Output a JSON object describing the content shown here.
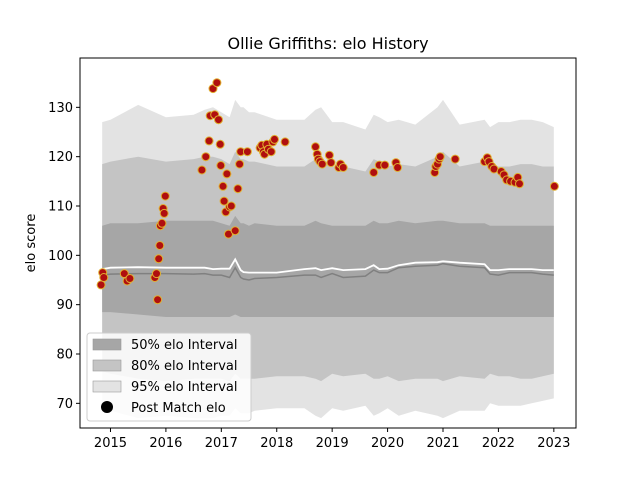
{
  "chart_data": {
    "type": "scatter",
    "title": "Ollie Griffiths: elo History",
    "xlabel": "",
    "ylabel": "elo score",
    "xlim": [
      2014.45,
      2023.4
    ],
    "ylim": [
      65,
      140
    ],
    "x_ticks": [
      2015,
      2016,
      2017,
      2018,
      2019,
      2020,
      2021,
      2022,
      2023
    ],
    "x_tick_labels": [
      "2015",
      "2016",
      "2017",
      "2018",
      "2019",
      "2020",
      "2021",
      "2022",
      "2023"
    ],
    "y_ticks": [
      70,
      80,
      90,
      100,
      110,
      120,
      130
    ],
    "y_tick_labels": [
      "70",
      "80",
      "90",
      "100",
      "110",
      "120",
      "130"
    ],
    "grid": false,
    "legend_position": "lower-left",
    "legend": [
      {
        "label": "50% elo Interval",
        "type": "band50"
      },
      {
        "label": "80% elo Interval",
        "type": "band80"
      },
      {
        "label": "95% elo Interval",
        "type": "band95"
      },
      {
        "label": "Post Match elo",
        "type": "marker"
      }
    ],
    "colors": {
      "band50": "#a6a6a6",
      "band80": "#c4c4c4",
      "band95": "#e3e3e3",
      "median_line": "#ffffff",
      "mean_line": "#808080",
      "marker_face": "#b00f0f",
      "marker_edge": "#e0b030"
    },
    "bands": {
      "x": [
        2014.85,
        2015.0,
        2015.5,
        2016.0,
        2016.5,
        2016.7,
        2016.85,
        2017.0,
        2017.15,
        2017.25,
        2017.35,
        2017.4,
        2017.5,
        2017.6,
        2018.0,
        2018.5,
        2018.7,
        2018.8,
        2019.0,
        2019.2,
        2019.6,
        2019.75,
        2019.85,
        2020.0,
        2020.2,
        2020.5,
        2020.9,
        2021.0,
        2021.3,
        2021.75,
        2021.85,
        2022.0,
        2022.2,
        2022.4,
        2022.6,
        2022.8,
        2023.0
      ],
      "p95_hi": [
        127,
        127.5,
        130.5,
        128,
        128.5,
        129.5,
        130,
        129,
        128,
        131.5,
        130,
        130,
        129,
        129,
        127.5,
        127.5,
        129.5,
        130,
        127,
        127,
        125.5,
        128.5,
        128,
        127,
        127.5,
        126.5,
        130,
        131.5,
        126.5,
        127.5,
        126,
        127,
        127,
        127.5,
        127.5,
        127,
        126
      ],
      "p80_hi": [
        118.5,
        119,
        120,
        119,
        119.5,
        120,
        120,
        119.5,
        118.5,
        121,
        119.5,
        119.5,
        119,
        119,
        118,
        118,
        119.5,
        119.5,
        118,
        118,
        117,
        119.5,
        119,
        118,
        118.5,
        118,
        120,
        121,
        118,
        119,
        117.5,
        118,
        118,
        118.5,
        118.5,
        118,
        118
      ],
      "p50_hi": [
        106,
        106.5,
        106.5,
        107,
        107,
        107,
        107,
        106.5,
        106,
        108,
        106.5,
        106.5,
        106,
        106.5,
        106,
        106,
        107,
        106.5,
        106,
        106,
        106,
        107,
        106.5,
        106.5,
        107,
        106.5,
        107,
        107,
        106.5,
        106.5,
        106,
        106,
        106,
        106,
        106,
        106,
        106
      ],
      "p50_lo": [
        88.5,
        88.5,
        88,
        87.5,
        87.5,
        87.5,
        87.5,
        87.5,
        87.5,
        88,
        87.5,
        87.5,
        87.5,
        87.5,
        87.5,
        87.5,
        87.5,
        87.5,
        87.5,
        87.5,
        87.5,
        87.5,
        87.5,
        87.5,
        87.5,
        87.5,
        87.5,
        87.5,
        87.5,
        87.5,
        87.5,
        87.5,
        87.5,
        87.5,
        87.5,
        87.5,
        87.5
      ],
      "p80_lo": [
        76.5,
        76,
        75,
        74.5,
        75,
        75,
        75,
        75,
        74.5,
        76,
        75,
        75,
        75,
        75,
        75.5,
        75.5,
        75,
        74.5,
        76,
        75.5,
        76,
        75,
        75,
        75.5,
        74.5,
        75,
        75,
        74.5,
        75.5,
        75,
        76,
        75.5,
        75.5,
        75,
        75,
        75.5,
        76
      ],
      "p95_lo": [
        69.5,
        68.5,
        67,
        67.5,
        67,
        67,
        67,
        67.5,
        67.5,
        69,
        68,
        68,
        68,
        68.5,
        69,
        69,
        67.5,
        67,
        69,
        68.5,
        69.5,
        67.5,
        68,
        69,
        67.5,
        68.5,
        67.5,
        67,
        68.5,
        68.5,
        70,
        69.5,
        69.5,
        69.5,
        70,
        70.5,
        71
      ],
      "median": [
        97.2,
        97.5,
        97.6,
        97.5,
        97.5,
        97.5,
        97.2,
        97.3,
        97.3,
        99.2,
        97.0,
        96.6,
        96.5,
        96.5,
        96.5,
        97.2,
        97.4,
        97.0,
        97.4,
        97.0,
        97.2,
        98.0,
        97.2,
        97.3,
        98.0,
        98.5,
        98.6,
        98.8,
        98.5,
        98.2,
        97.0,
        97.0,
        97.2,
        97.2,
        97.2,
        97.0,
        97.0
      ],
      "mean": [
        96.0,
        96.2,
        96.3,
        96.3,
        96.2,
        96.3,
        96.0,
        96.0,
        95.5,
        97.5,
        95.5,
        95.2,
        95.0,
        95.3,
        95.5,
        96.0,
        96.0,
        95.5,
        96.3,
        95.5,
        95.8,
        97.0,
        96.5,
        96.5,
        97.5,
        97.8,
        98.0,
        98.3,
        97.8,
        97.5,
        96.2,
        96.0,
        96.5,
        96.5,
        96.5,
        96.2,
        96.0
      ]
    },
    "points": [
      {
        "x": 2014.83,
        "y": 94.0
      },
      {
        "x": 2014.86,
        "y": 96.5
      },
      {
        "x": 2014.88,
        "y": 95.5
      },
      {
        "x": 2015.25,
        "y": 96.3
      },
      {
        "x": 2015.3,
        "y": 94.8
      },
      {
        "x": 2015.35,
        "y": 95.3
      },
      {
        "x": 2015.8,
        "y": 95.5
      },
      {
        "x": 2015.83,
        "y": 96.3
      },
      {
        "x": 2015.85,
        "y": 91.0
      },
      {
        "x": 2015.87,
        "y": 99.3
      },
      {
        "x": 2015.89,
        "y": 102.0
      },
      {
        "x": 2015.9,
        "y": 106.0
      },
      {
        "x": 2015.93,
        "y": 106.5
      },
      {
        "x": 2015.95,
        "y": 109.5
      },
      {
        "x": 2015.97,
        "y": 108.5
      },
      {
        "x": 2015.99,
        "y": 112.0
      },
      {
        "x": 2016.65,
        "y": 117.3
      },
      {
        "x": 2016.72,
        "y": 120.0
      },
      {
        "x": 2016.78,
        "y": 123.2
      },
      {
        "x": 2016.8,
        "y": 128.3
      },
      {
        "x": 2016.85,
        "y": 133.8
      },
      {
        "x": 2016.88,
        "y": 128.5
      },
      {
        "x": 2016.92,
        "y": 135.0
      },
      {
        "x": 2016.95,
        "y": 127.5
      },
      {
        "x": 2016.98,
        "y": 122.5
      },
      {
        "x": 2016.99,
        "y": 118.2
      },
      {
        "x": 2017.03,
        "y": 114.0
      },
      {
        "x": 2017.05,
        "y": 111.0
      },
      {
        "x": 2017.08,
        "y": 108.8
      },
      {
        "x": 2017.1,
        "y": 116.5
      },
      {
        "x": 2017.13,
        "y": 104.3
      },
      {
        "x": 2017.15,
        "y": 109.8
      },
      {
        "x": 2017.18,
        "y": 110.0
      },
      {
        "x": 2017.25,
        "y": 105.0
      },
      {
        "x": 2017.3,
        "y": 113.5
      },
      {
        "x": 2017.33,
        "y": 118.5
      },
      {
        "x": 2017.35,
        "y": 121.0
      },
      {
        "x": 2017.47,
        "y": 121.0
      },
      {
        "x": 2017.7,
        "y": 121.8
      },
      {
        "x": 2017.73,
        "y": 122.3
      },
      {
        "x": 2017.76,
        "y": 121.0
      },
      {
        "x": 2017.78,
        "y": 120.5
      },
      {
        "x": 2017.82,
        "y": 122.5
      },
      {
        "x": 2017.85,
        "y": 121.5
      },
      {
        "x": 2017.9,
        "y": 121.0
      },
      {
        "x": 2017.93,
        "y": 123.0
      },
      {
        "x": 2017.96,
        "y": 123.5
      },
      {
        "x": 2018.15,
        "y": 123.0
      },
      {
        "x": 2018.7,
        "y": 122.0
      },
      {
        "x": 2018.73,
        "y": 120.5
      },
      {
        "x": 2018.75,
        "y": 119.5
      },
      {
        "x": 2018.78,
        "y": 119.0
      },
      {
        "x": 2018.82,
        "y": 118.5
      },
      {
        "x": 2018.95,
        "y": 120.3
      },
      {
        "x": 2018.98,
        "y": 118.8
      },
      {
        "x": 2019.12,
        "y": 117.8
      },
      {
        "x": 2019.15,
        "y": 118.5
      },
      {
        "x": 2019.2,
        "y": 117.8
      },
      {
        "x": 2019.75,
        "y": 116.8
      },
      {
        "x": 2019.85,
        "y": 118.3
      },
      {
        "x": 2019.95,
        "y": 118.3
      },
      {
        "x": 2020.15,
        "y": 118.8
      },
      {
        "x": 2020.18,
        "y": 117.8
      },
      {
        "x": 2020.85,
        "y": 116.8
      },
      {
        "x": 2020.87,
        "y": 118.0
      },
      {
        "x": 2020.9,
        "y": 118.5
      },
      {
        "x": 2020.93,
        "y": 119.5
      },
      {
        "x": 2020.95,
        "y": 120.0
      },
      {
        "x": 2021.22,
        "y": 119.5
      },
      {
        "x": 2021.75,
        "y": 119.0
      },
      {
        "x": 2021.8,
        "y": 119.8
      },
      {
        "x": 2021.83,
        "y": 119.0
      },
      {
        "x": 2021.88,
        "y": 118.0
      },
      {
        "x": 2021.92,
        "y": 117.5
      },
      {
        "x": 2022.05,
        "y": 117.0
      },
      {
        "x": 2022.1,
        "y": 116.3
      },
      {
        "x": 2022.15,
        "y": 115.3
      },
      {
        "x": 2022.22,
        "y": 115.0
      },
      {
        "x": 2022.3,
        "y": 114.8
      },
      {
        "x": 2022.35,
        "y": 115.8
      },
      {
        "x": 2022.38,
        "y": 114.5
      },
      {
        "x": 2023.01,
        "y": 114.0
      }
    ]
  }
}
